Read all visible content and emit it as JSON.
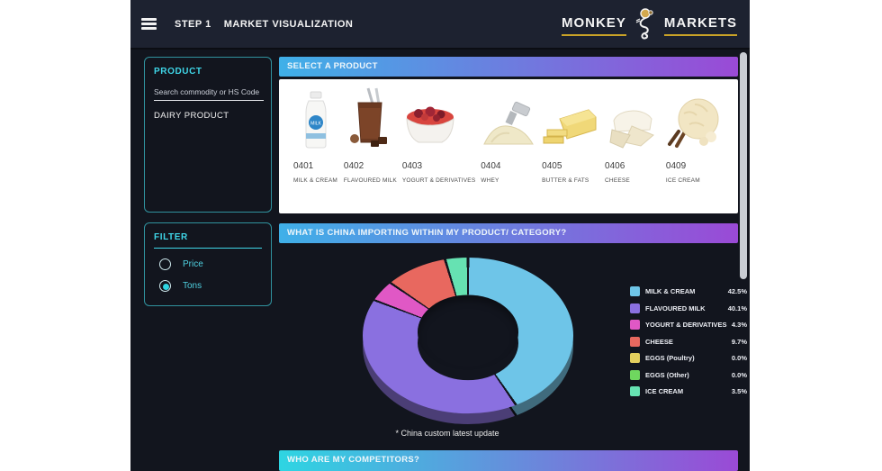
{
  "topbar": {
    "step_label": "STEP 1",
    "title": "MARKET VISUALIZATION",
    "logo": {
      "left": "MONKEY",
      "right": "MARKETS"
    }
  },
  "sidebar": {
    "product_panel": {
      "title": "PRODUCT",
      "search_placeholder": "Search commodity or HS Code",
      "selected_category": "DAIRY PRODUCT"
    },
    "filter_panel": {
      "title": "FILTER",
      "options": [
        {
          "label": "Price",
          "selected": false
        },
        {
          "label": "Tons",
          "selected": true
        }
      ]
    }
  },
  "main": {
    "select_product_header": "SELECT A PRODUCT",
    "products": [
      {
        "code": "0401",
        "name": "MILK & CREAM",
        "icon": "milk-bottle-icon"
      },
      {
        "code": "0402",
        "name": "FLAVOURED MILK",
        "icon": "chocolate-milk-icon"
      },
      {
        "code": "0403",
        "name": "YOGURT & DERIVATIVES",
        "icon": "yogurt-bowl-icon"
      },
      {
        "code": "0404",
        "name": "WHEY",
        "icon": "whey-powder-icon"
      },
      {
        "code": "0405",
        "name": "BUTTER & FATS",
        "icon": "butter-block-icon"
      },
      {
        "code": "0406",
        "name": "CHEESE",
        "icon": "cheese-wedge-icon"
      },
      {
        "code": "0409",
        "name": "ICE CREAM",
        "icon": "ice-cream-icon"
      }
    ],
    "imports_header": "WHAT IS CHINA IMPORTING WITHIN MY PRODUCT/ CATEGORY?",
    "chart_note": "* China custom latest update",
    "competitors_header": "WHO ARE MY COMPETITORS?"
  },
  "chart_data": {
    "type": "pie",
    "donut": true,
    "title": "WHAT IS CHINA IMPORTING WITHIN MY PRODUCT/ CATEGORY?",
    "legend_position": "right",
    "value_format": "percent",
    "series": [
      {
        "name": "MILK & CREAM",
        "value": 42.5,
        "color": "#6ec5e8"
      },
      {
        "name": "FLAVOURED MILK",
        "value": 40.1,
        "color": "#8a70e0"
      },
      {
        "name": "YOGURT & DERIVATIVES",
        "value": 4.3,
        "color": "#e058c5"
      },
      {
        "name": "CHEESE",
        "value": 9.7,
        "color": "#e8685f"
      },
      {
        "name": "EGGS (Poultry)",
        "value": 0.0,
        "color": "#e3cf5e"
      },
      {
        "name": "EGGS (Other)",
        "value": 0.0,
        "color": "#6fd75f"
      },
      {
        "name": "ICE CREAM",
        "value": 3.5,
        "color": "#66e2b2"
      }
    ]
  },
  "colors": {
    "app_background": "#12151e",
    "topbar_background": "#1d2230",
    "accent_cyan": "#3fd6e8",
    "header_gradient_start": "#3fb0e8",
    "header_gradient_end": "#9a4ad6",
    "logo_underline_gold": "#c9a227"
  }
}
